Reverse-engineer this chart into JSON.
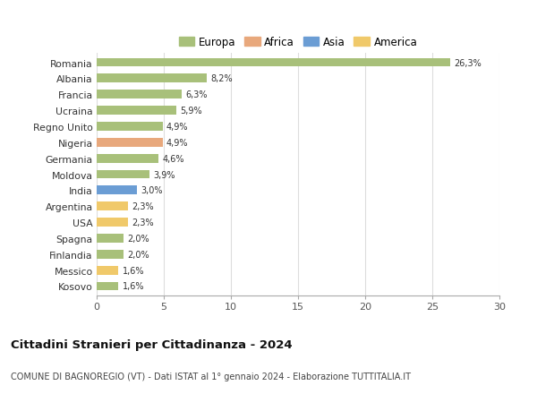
{
  "countries": [
    "Romania",
    "Albania",
    "Francia",
    "Ucraina",
    "Regno Unito",
    "Nigeria",
    "Germania",
    "Moldova",
    "India",
    "Argentina",
    "USA",
    "Spagna",
    "Finlandia",
    "Messico",
    "Kosovo"
  ],
  "values": [
    26.3,
    8.2,
    6.3,
    5.9,
    4.9,
    4.9,
    4.6,
    3.9,
    3.0,
    2.3,
    2.3,
    2.0,
    2.0,
    1.6,
    1.6
  ],
  "labels": [
    "26,3%",
    "8,2%",
    "6,3%",
    "5,9%",
    "4,9%",
    "4,9%",
    "4,6%",
    "3,9%",
    "3,0%",
    "2,3%",
    "2,3%",
    "2,0%",
    "2,0%",
    "1,6%",
    "1,6%"
  ],
  "continents": [
    "Europa",
    "Europa",
    "Europa",
    "Europa",
    "Europa",
    "Africa",
    "Europa",
    "Europa",
    "Asia",
    "America",
    "America",
    "Europa",
    "Europa",
    "America",
    "Europa"
  ],
  "colors": {
    "Europa": "#a8c07a",
    "Africa": "#e8a87c",
    "Asia": "#6b9dd4",
    "America": "#f0c96a"
  },
  "xlim": [
    0,
    30
  ],
  "xticks": [
    0,
    5,
    10,
    15,
    20,
    25,
    30
  ],
  "title": "Cittadini Stranieri per Cittadinanza - 2024",
  "subtitle": "COMUNE DI BAGNOREGIO (VT) - Dati ISTAT al 1° gennaio 2024 - Elaborazione TUTTITALIA.IT",
  "background_color": "#ffffff",
  "grid_color": "#dddddd",
  "bar_height": 0.55,
  "legend_entries": [
    "Europa",
    "Africa",
    "Asia",
    "America"
  ]
}
